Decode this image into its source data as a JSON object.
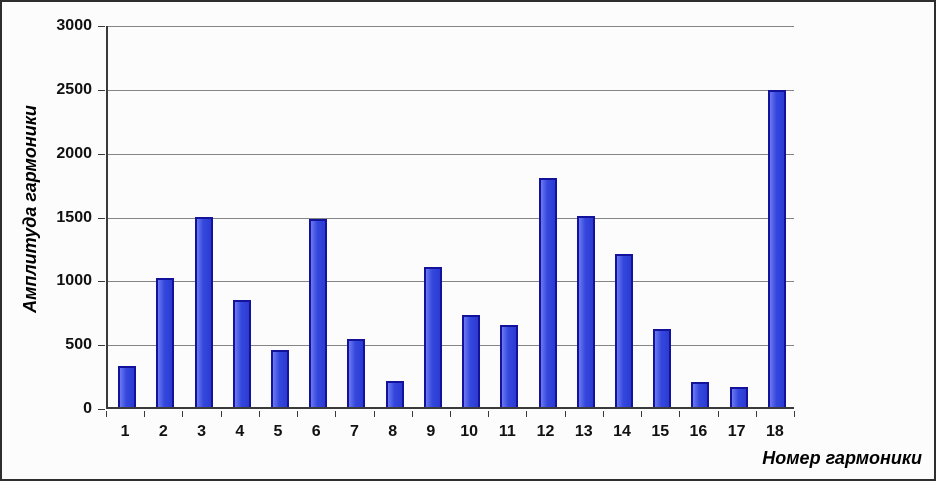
{
  "chart_data": {
    "type": "bar",
    "title": "",
    "xlabel": "Номер гармоники",
    "ylabel": "Амплитуда гармоники",
    "categories": [
      "1",
      "2",
      "3",
      "4",
      "5",
      "6",
      "7",
      "8",
      "9",
      "10",
      "11",
      "12",
      "13",
      "14",
      "15",
      "16",
      "17",
      "18"
    ],
    "values": [
      320,
      1010,
      1485,
      840,
      445,
      1470,
      535,
      205,
      1100,
      720,
      640,
      1795,
      1495,
      1200,
      615,
      195,
      155,
      2485
    ],
    "series_name": "Амплитуда гармоники",
    "ylim": [
      0,
      3000
    ],
    "yticks": [
      0,
      500,
      1000,
      1500,
      2000,
      2500,
      3000
    ],
    "grid": "horizontal",
    "legend": "none",
    "colors": {
      "bar_fill": "#3448de",
      "bar_border": "#12129a",
      "gridline": "#858585",
      "axis": "#3a3a3a",
      "background": "#fcfcfc",
      "frame": "#2e2e2e",
      "text": "#000000"
    }
  }
}
